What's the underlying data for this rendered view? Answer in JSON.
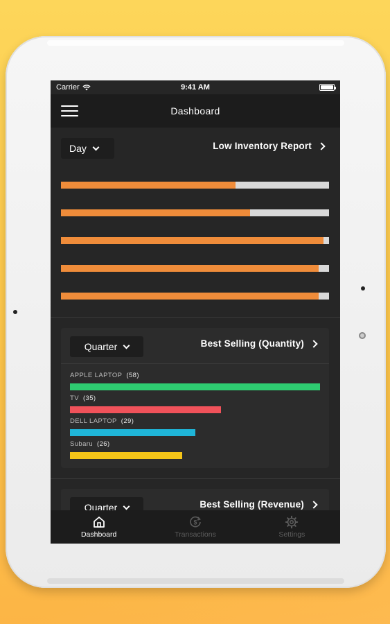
{
  "status_bar": {
    "carrier": "Carrier",
    "time": "9:41 AM"
  },
  "nav": {
    "title": "Dashboard"
  },
  "inventory": {
    "period": "Day",
    "report_link": "Low Inventory Report",
    "bars": [
      {
        "level": 0.65
      },
      {
        "level": 0.705
      },
      {
        "level": 0.98
      },
      {
        "level": 0.96
      },
      {
        "level": 0.96
      }
    ]
  },
  "best_quantity": {
    "period": "Quarter",
    "title": "Best Selling (Quantity)",
    "max": 58,
    "items": [
      {
        "name": "APPLE LAPTOP",
        "count": "(58)",
        "value": 58,
        "color": "#2ecc71"
      },
      {
        "name": "TV",
        "count": "(35)",
        "value": 35,
        "color": "#f0525a"
      },
      {
        "name": "DELL LAPTOP",
        "count": "(29)",
        "value": 29,
        "color": "#1fb5d8"
      },
      {
        "name": "Subaru",
        "count": "(26)",
        "value": 26,
        "color": "#f5c518"
      }
    ]
  },
  "best_revenue": {
    "period": "Quarter",
    "title": "Best Selling (Revenue)"
  },
  "tabs": [
    {
      "label": "Dashboard",
      "icon": "home-icon",
      "active": true
    },
    {
      "label": "Transactions",
      "icon": "dollar-icon",
      "active": false
    },
    {
      "label": "Settings",
      "icon": "gear-icon",
      "active": false
    }
  ],
  "colors": {
    "inventory_fill": "#ef8c3a",
    "inventory_track": "#d9d9d9",
    "screen_bg": "#262626"
  }
}
